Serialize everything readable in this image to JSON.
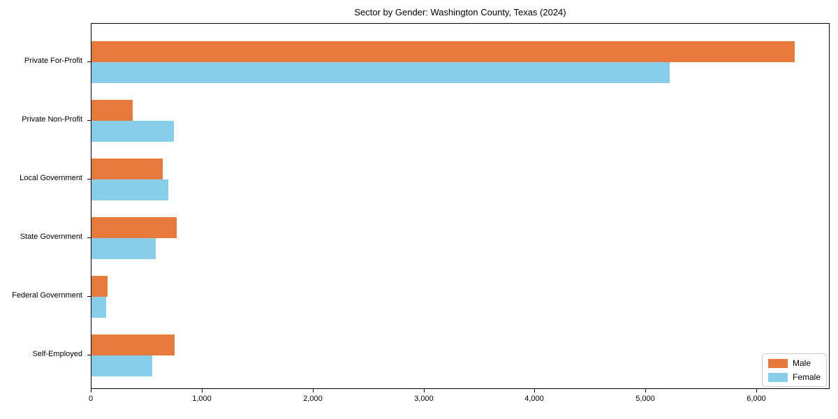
{
  "title": "Sector by Gender: Washington County, Texas (2024)",
  "chart_data": {
    "type": "bar",
    "orientation": "horizontal",
    "title": "Sector by Gender: Washington County, Texas (2024)",
    "categories": [
      "Private For-Profit",
      "Private Non-Profit",
      "Local Government",
      "State Government",
      "Federal Government",
      "Self-Employed"
    ],
    "series": [
      {
        "name": "Male",
        "color": "#e8793d",
        "values": [
          6340,
          370,
          640,
          770,
          145,
          750
        ]
      },
      {
        "name": "Female",
        "color": "#87ceeb",
        "values": [
          5210,
          740,
          690,
          580,
          135,
          550
        ]
      }
    ],
    "xlabel": "",
    "ylabel": "",
    "xlim": [
      0,
      6660
    ],
    "x_ticks": [
      0,
      1000,
      2000,
      3000,
      4000,
      5000,
      6000
    ],
    "x_tick_labels": [
      "0",
      "1,000",
      "2,000",
      "3,000",
      "4,000",
      "5,000",
      "6,000"
    ],
    "grid": false,
    "legend_position": "lower right"
  },
  "legend": {
    "items": [
      {
        "label": "Male",
        "color": "#e8793d"
      },
      {
        "label": "Female",
        "color": "#87ceeb"
      }
    ]
  }
}
